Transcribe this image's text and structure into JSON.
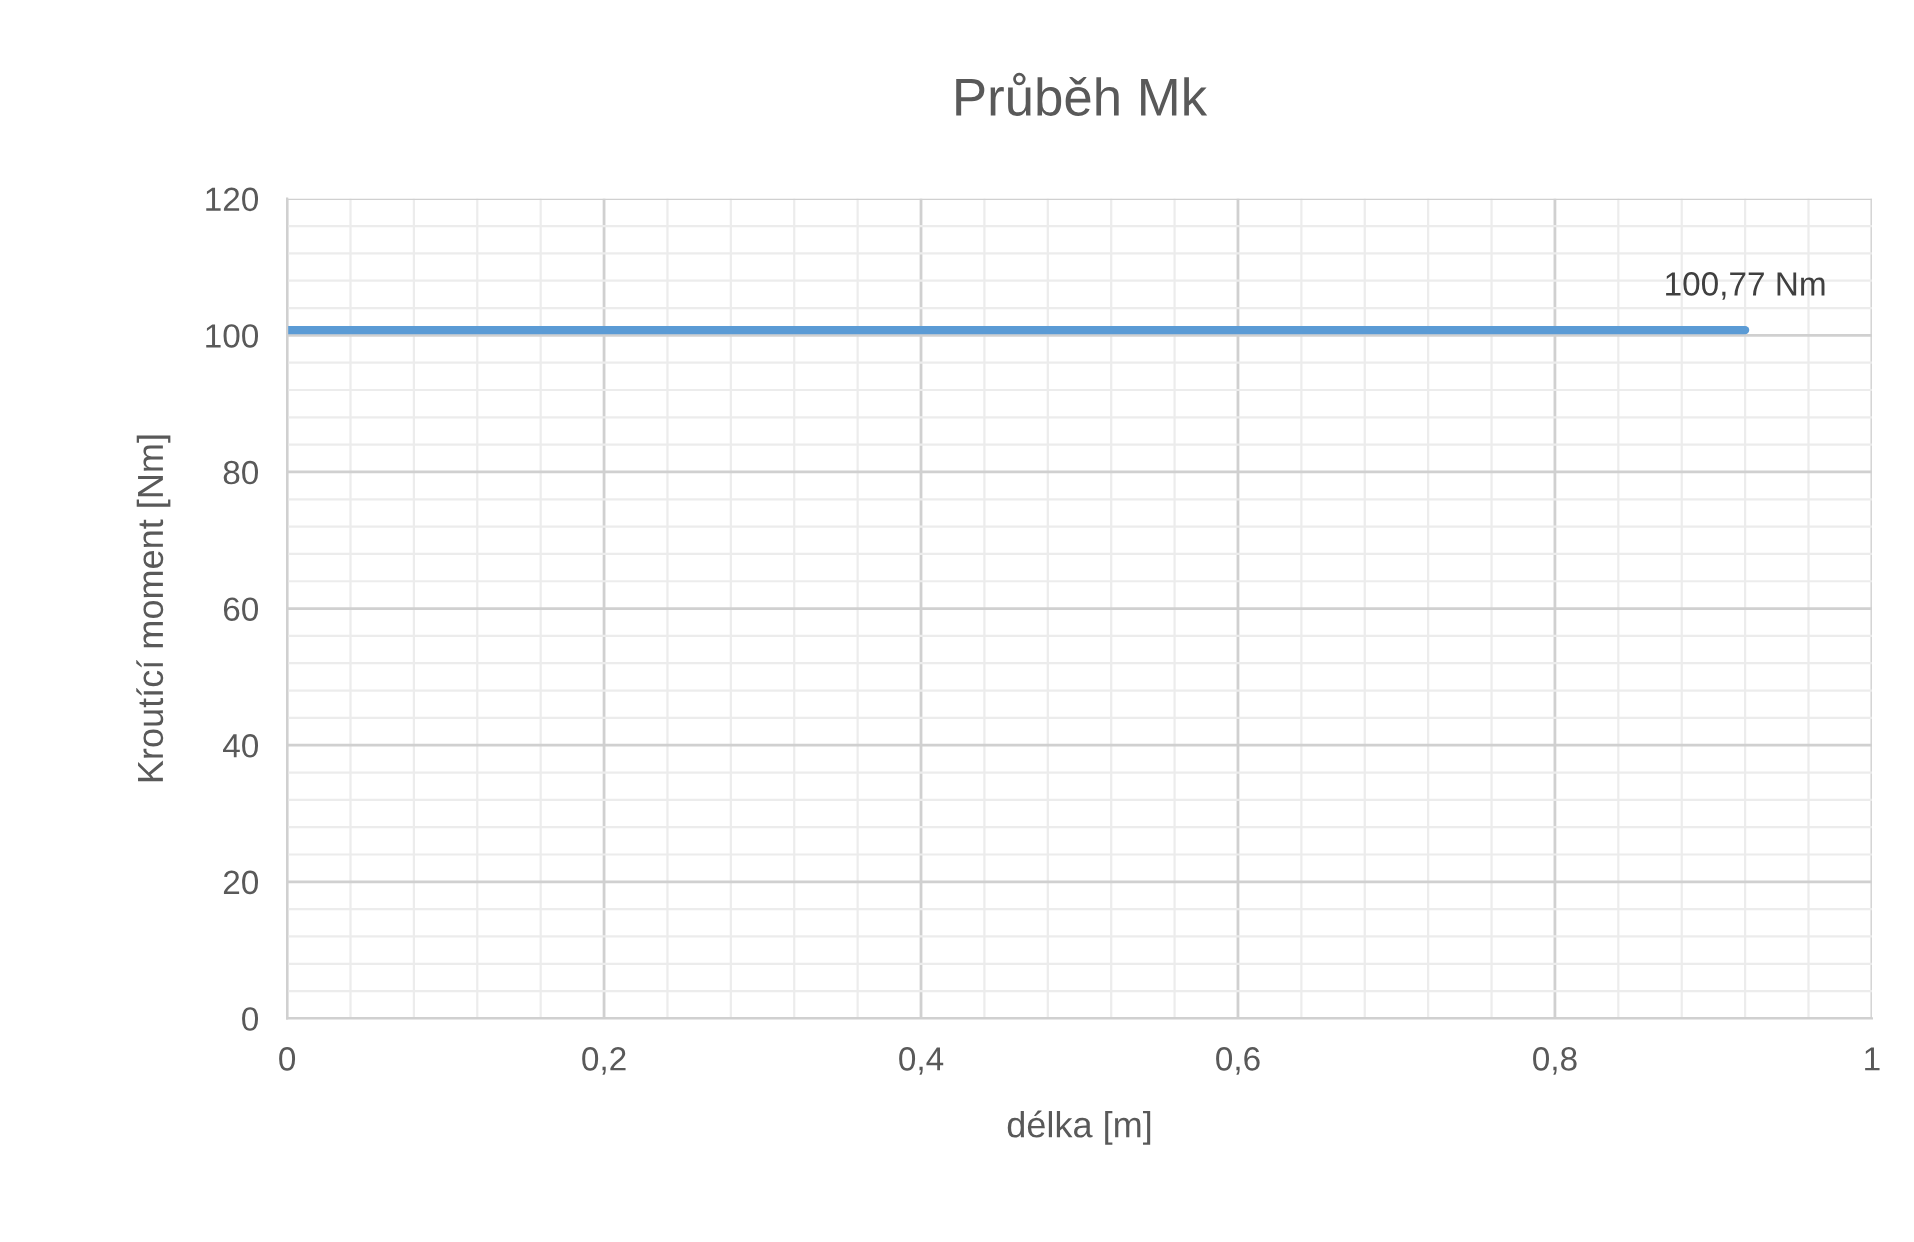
{
  "chart_data": {
    "type": "line",
    "title": "Průběh Mk",
    "xlabel": "délka [m]",
    "ylabel": "Kroutící moment [Nm]",
    "x": [
      0,
      0.92
    ],
    "series": [
      {
        "color": "#5b9bd5",
        "values": [
          100.77,
          100.77
        ]
      }
    ],
    "annotations": [
      {
        "text": "100,77 Nm",
        "x": 0.92,
        "y": 100.77
      }
    ],
    "xlim": [
      0,
      1
    ],
    "xticks": [
      0,
      {
        "value": 0.2,
        "label": "0,2"
      },
      {
        "value": 0.4,
        "label": "0,4"
      },
      {
        "value": 0.6,
        "label": "0,6"
      },
      {
        "value": 0.8,
        "label": "0,8"
      },
      1
    ],
    "ylim": [
      0,
      120
    ],
    "yticks": [
      0,
      20,
      40,
      60,
      80,
      100,
      120
    ],
    "grid": true,
    "marker": "none",
    "line_style": "solid"
  }
}
